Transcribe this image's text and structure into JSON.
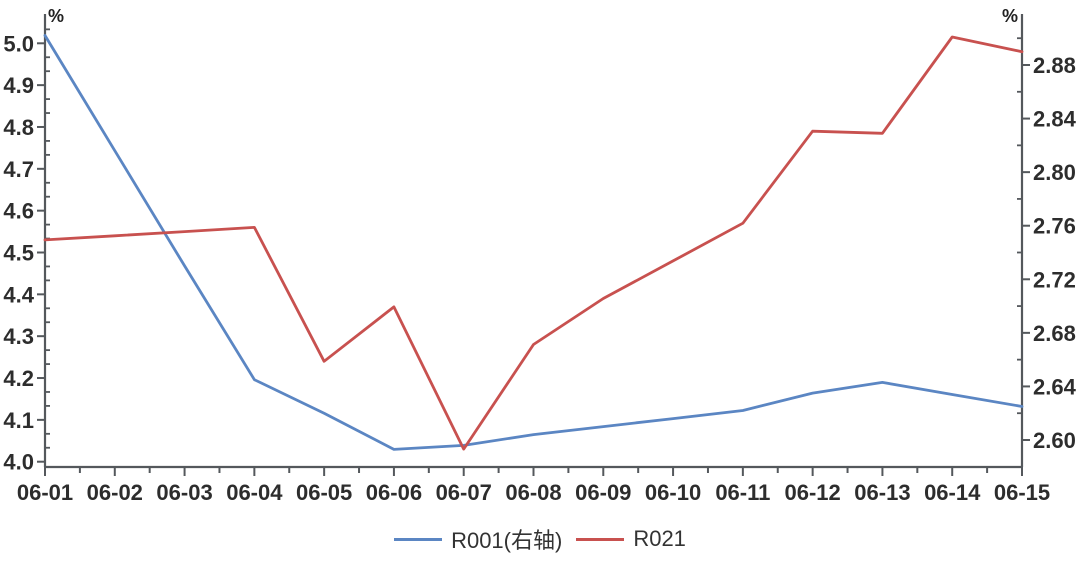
{
  "chart_data": {
    "type": "line",
    "title": "",
    "grid": false,
    "legend_position": "bottom-center",
    "categories": [
      "06-01",
      "06-02",
      "06-03",
      "06-04",
      "06-05",
      "06-06",
      "06-07",
      "06-08",
      "06-09",
      "06-10",
      "06-11",
      "06-12",
      "06-13",
      "06-14",
      "06-15"
    ],
    "series": [
      {
        "name": "R001(右轴)",
        "axis": "right",
        "color": "#5B86C3",
        "values": [
          2.902,
          2.816,
          2.73,
          2.645,
          2.62,
          2.593,
          2.596,
          2.604,
          2.61,
          2.616,
          2.622,
          2.635,
          2.643,
          2.634,
          2.625
        ]
      },
      {
        "name": "R021",
        "axis": "left",
        "color": "#C8514F",
        "values": [
          4.53,
          4.54,
          4.55,
          4.56,
          4.24,
          4.37,
          4.03,
          4.28,
          4.39,
          4.48,
          4.57,
          4.79,
          4.785,
          5.015,
          4.98
        ]
      }
    ],
    "left_axis": {
      "unit_label": "%",
      "min": 4.0,
      "max": 5.0,
      "tick_step": 0.1,
      "ticks": [
        "5.0",
        "4.9",
        "4.8",
        "4.7",
        "4.6",
        "4.5",
        "4.4",
        "4.3",
        "4.2",
        "4.1",
        "4.0"
      ]
    },
    "right_axis": {
      "unit_label": "%",
      "min": 2.6,
      "max": 2.88,
      "tick_step": 0.04,
      "ticks": [
        "2.88",
        "2.84",
        "2.80",
        "2.76",
        "2.72",
        "2.68",
        "2.64",
        "2.60"
      ]
    },
    "colors": {
      "axis": "#54585C",
      "tick_text": "#2D2D2D"
    }
  }
}
